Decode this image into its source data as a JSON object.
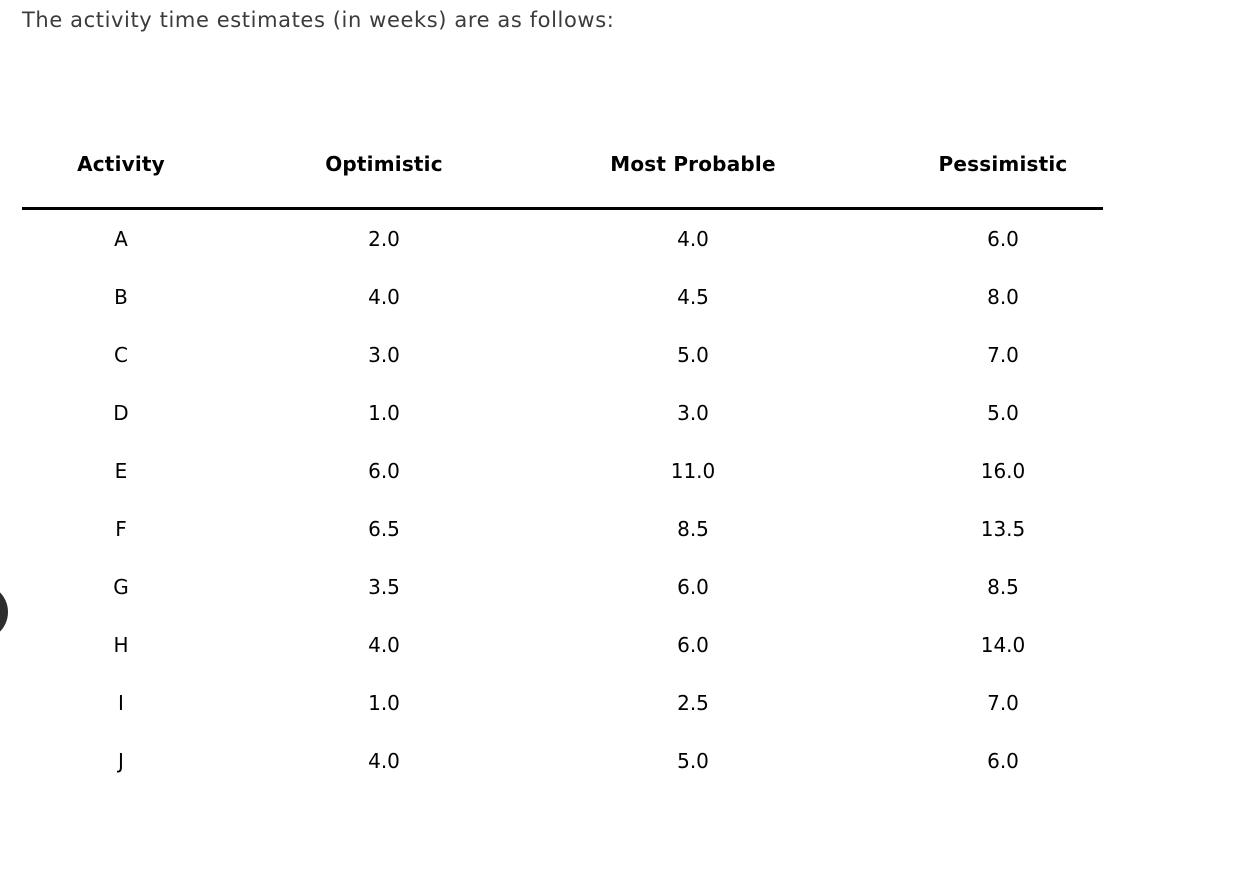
{
  "heading": "The activity time estimates (in weeks) are as follows:",
  "table": {
    "columns": [
      "Activity",
      "Optimistic",
      "Most Probable",
      "Pessimistic"
    ],
    "rows": [
      [
        "A",
        "2.0",
        "4.0",
        "6.0"
      ],
      [
        "B",
        "4.0",
        "4.5",
        "8.0"
      ],
      [
        "C",
        "3.0",
        "5.0",
        "7.0"
      ],
      [
        "D",
        "1.0",
        "3.0",
        "5.0"
      ],
      [
        "E",
        "6.0",
        "11.0",
        "16.0"
      ],
      [
        "F",
        "6.5",
        "8.5",
        "13.5"
      ],
      [
        "G",
        "3.5",
        "6.0",
        "8.5"
      ],
      [
        "H",
        "4.0",
        "6.0",
        "14.0"
      ],
      [
        "I",
        "1.0",
        "2.5",
        "7.0"
      ],
      [
        "J",
        "4.0",
        "5.0",
        "6.0"
      ]
    ]
  },
  "colors": {
    "heading_text": "#3b3b3b",
    "table_text": "#000000",
    "rule": "#000000",
    "partial_circle": "#2e2e2e"
  }
}
